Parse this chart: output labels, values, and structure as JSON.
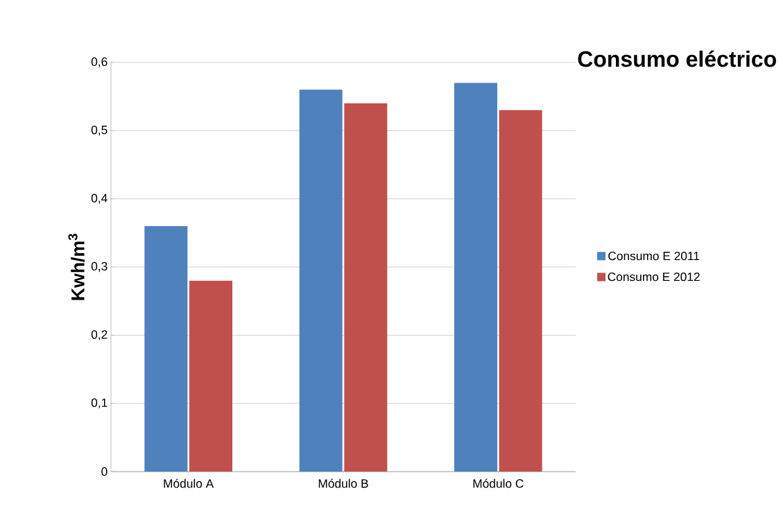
{
  "chart_data": {
    "type": "bar",
    "title": "Consumo eléctrico",
    "ylabel": "Kwh/m$^{3}$",
    "categories": [
      "Módulo A",
      "Módulo B",
      "Módulo C"
    ],
    "series": [
      {
        "name": "Consumo E 2011",
        "color": "#4f81bd",
        "values": [
          0.36,
          0.56,
          0.57
        ]
      },
      {
        "name": "Consumo E 2012",
        "color": "#c0504d",
        "values": [
          0.28,
          0.54,
          0.53
        ]
      }
    ],
    "ylim": [
      0,
      0.6
    ],
    "yticks": [
      0,
      {
        "value": 0.1,
        "label": "0,1"
      },
      {
        "value": 0.2,
        "label": "0,2"
      },
      {
        "value": 0.3,
        "label": "0,3"
      },
      {
        "value": 0.4,
        "label": "0,4"
      },
      {
        "value": 0.5,
        "label": "0,5"
      },
      {
        "value": 0.6,
        "label": "0,6"
      }
    ],
    "grid": "y",
    "legend": "right"
  }
}
